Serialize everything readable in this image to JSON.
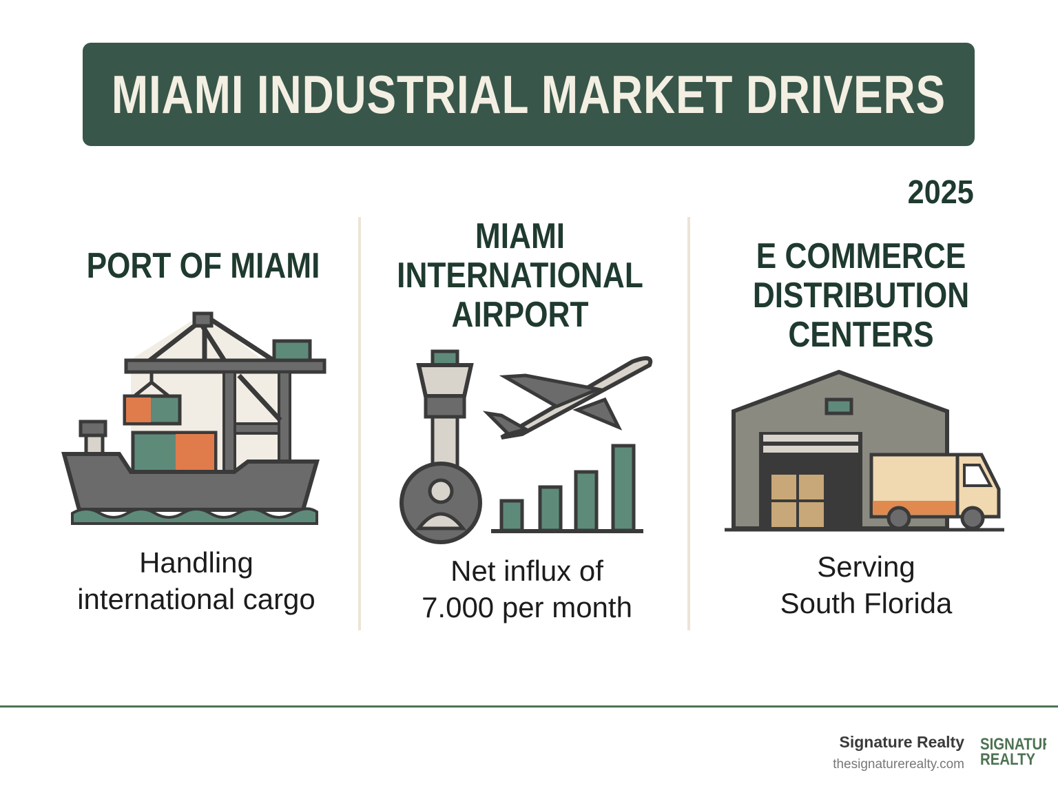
{
  "title": "MIAMI INDUSTRIAL MARKET DRIVERS",
  "year": "2025",
  "columns": [
    {
      "heading": [
        "PORT OF MIAMI"
      ],
      "icon": "container-ship-crane-icon",
      "caption": [
        "Handling",
        "international cargo"
      ]
    },
    {
      "heading": [
        "MIAMI",
        "INTERNATIONAL",
        "AIRPORT"
      ],
      "icon": "airport-tower-plane-growth-chart-icon",
      "caption": [
        "Net influx of",
        "7.000 per month"
      ]
    },
    {
      "heading": [
        "E  COMMERCE",
        "DISTRIBUTION",
        "CENTERS"
      ],
      "icon": "warehouse-delivery-truck-icon",
      "caption": [
        "Serving",
        "South Florida"
      ]
    }
  ],
  "footer": {
    "brand": "Signature Realty",
    "url": "thesignaturerealty.com",
    "logo_text": [
      "SIGNATURE",
      "REALTY"
    ]
  },
  "colors": {
    "primary_green": "#38574a",
    "teal": "#5e8a7a",
    "orange": "#e07b4c",
    "gray": "#6b6b6b"
  }
}
